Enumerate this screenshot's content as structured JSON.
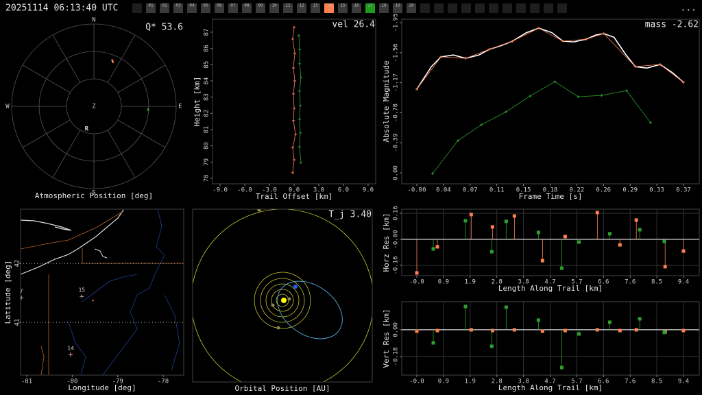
{
  "header": {
    "timestamp": "20251114 06:13:40 UTC",
    "menu": "...",
    "tabs": [
      {
        "label": "01",
        "color": "#3a3a3a"
      },
      {
        "label": "02",
        "color": "#3a3a3a"
      },
      {
        "label": "03",
        "color": "#3a3a3a"
      },
      {
        "label": "04",
        "color": "#3a3a3a"
      },
      {
        "label": "05",
        "color": "#3a3a3a"
      },
      {
        "label": "06",
        "color": "#3a3a3a"
      },
      {
        "label": "07",
        "color": "#3a3a3a"
      },
      {
        "label": "08",
        "color": "#3a3a3a"
      },
      {
        "label": "09",
        "color": "#3a3a3a"
      },
      {
        "label": "10",
        "color": "#3a3a3a"
      },
      {
        "label": "11",
        "color": "#3a3a3a"
      },
      {
        "label": "12",
        "color": "#3a3a3a"
      },
      {
        "label": "13",
        "color": "#3a3a3a"
      },
      {
        "label": "14",
        "color": "#ff7f50"
      },
      {
        "label": "15",
        "color": "#3a3a3a"
      },
      {
        "label": "16",
        "color": "#3a3a3a"
      },
      {
        "label": "17",
        "color": "#1f9a1f"
      },
      {
        "label": "18",
        "color": "#3a3a3a"
      },
      {
        "label": "19",
        "color": "#3a3a3a"
      },
      {
        "label": "20",
        "color": "#3a3a3a"
      }
    ]
  },
  "chart_data": [
    {
      "type": "polar",
      "title": "Atmospheric Position [deg]",
      "annotation": "Q* 53.6",
      "directions": [
        "N",
        "E",
        "S",
        "W"
      ],
      "center_label": "Z",
      "rlim": [
        0,
        90
      ],
      "rticks": [
        30,
        60,
        90
      ],
      "azticks": [
        0,
        30,
        60,
        90,
        120,
        150,
        180,
        210,
        240,
        270,
        300,
        330
      ],
      "series": [
        {
          "color": "#ff7f50",
          "azimuth": [
            21,
            24
          ],
          "zenith": [
            55,
            52
          ]
        },
        {
          "color": "#2ca02c",
          "azimuth": [
            92,
            95
          ],
          "zenith": [
            59,
            60
          ]
        }
      ],
      "labels": [
        {
          "text": "R",
          "azimuth": 198,
          "zenith": 26
        }
      ]
    },
    {
      "type": "line",
      "xlabel": "Trail Offset [km]",
      "ylabel": "Height [km]",
      "annotation": "vel 26.4",
      "xlim": [
        -9.92,
        9.92
      ],
      "ylim": [
        77.66,
        87.8
      ],
      "xticks": [
        {
          "value": -9,
          "label": "-9.0"
        },
        {
          "value": -6,
          "label": "-6.0"
        },
        {
          "value": -3,
          "label": "-3.0"
        },
        {
          "value": 0,
          "label": "0.0"
        },
        {
          "value": 3,
          "label": "3.0"
        },
        {
          "value": 6,
          "label": "6.0"
        },
        {
          "value": 9,
          "label": "9.0"
        }
      ],
      "yticks": [
        78,
        79,
        80,
        81,
        82,
        83,
        84,
        85,
        86,
        87
      ],
      "series": [
        {
          "color": "#ff7f50",
          "markers": true,
          "x": [
            0,
            -0.17,
            0.08,
            -0.08,
            0.08,
            -0.08,
            0,
            -0.08,
            0.17,
            -0.17,
            0,
            -0.17
          ],
          "y": [
            87.3,
            86.58,
            85.69,
            84.8,
            84.0,
            83.2,
            82.31,
            81.55,
            80.7,
            79.9,
            79.14,
            78.34
          ]
        },
        {
          "color": "#2ca02c",
          "markers": true,
          "x": [
            0.58,
            0.67,
            0.67,
            0.83,
            0.67,
            0.75,
            0.67,
            0.75,
            0.67,
            0.83
          ],
          "y": [
            86.79,
            85.94,
            85.06,
            84.21,
            83.37,
            82.48,
            81.63,
            80.79,
            79.94,
            78.97
          ]
        }
      ]
    },
    {
      "type": "line",
      "xlabel": "Frame Time [s]",
      "ylabel": "Absolute Magnitude",
      "annotation": "mass -2.62",
      "xlim": [
        -0.0206,
        0.3866
      ],
      "ylim": [
        0.142,
        -1.995
      ],
      "xticks": [
        {
          "value": 0,
          "label": "-0.00"
        },
        {
          "value": 0.0365,
          "label": "0.04"
        },
        {
          "value": 0.073,
          "label": "0.07"
        },
        {
          "value": 0.1095,
          "label": "0.11"
        },
        {
          "value": 0.146,
          "label": "0.15"
        },
        {
          "value": 0.1825,
          "label": "0.18"
        },
        {
          "value": 0.219,
          "label": "0.22"
        },
        {
          "value": 0.2555,
          "label": "0.26"
        },
        {
          "value": 0.292,
          "label": "0.29"
        },
        {
          "value": 0.3285,
          "label": "0.33"
        },
        {
          "value": 0.365,
          "label": "0.37"
        }
      ],
      "yticks": [
        {
          "value": 0,
          "label": "0.00"
        },
        -0.39,
        -0.78,
        -1.17,
        -1.56,
        -1.95
      ],
      "series": [
        {
          "color": "#ffffff",
          "markers": false,
          "x": [
            0,
            0.02,
            0.033,
            0.05,
            0.067,
            0.085,
            0.099,
            0.115,
            0.131,
            0.15,
            0.167,
            0.185,
            0.2,
            0.215,
            0.232,
            0.245,
            0.256,
            0.27,
            0.285,
            0.299,
            0.315,
            0.333,
            0.35,
            0.365
          ],
          "y": [
            -1.086,
            -1.38,
            -1.505,
            -1.53,
            -1.487,
            -1.53,
            -1.603,
            -1.65,
            -1.71,
            -1.82,
            -1.879,
            -1.82,
            -1.71,
            -1.7,
            -1.736,
            -1.79,
            -1.808,
            -1.76,
            -1.55,
            -1.38,
            -1.36,
            -1.407,
            -1.3,
            -1.175
          ]
        },
        {
          "color": "#ff7f50",
          "markers": true,
          "x": [
            0,
            0.033,
            0.067,
            0.099,
            0.131,
            0.167,
            0.2,
            0.232,
            0.256,
            0.299,
            0.333,
            0.365
          ],
          "y": [
            -1.086,
            -1.505,
            -1.487,
            -1.603,
            -1.71,
            -1.879,
            -1.71,
            -1.736,
            -1.808,
            -1.38,
            -1.407,
            -1.175
          ]
        },
        {
          "color": "#2ca02c",
          "markers": true,
          "x": [
            0.0216,
            0.0563,
            0.0882,
            0.122,
            0.155,
            0.189,
            0.221,
            0.253,
            0.287,
            0.32
          ],
          "y": [
            0.009,
            -0.418,
            -0.623,
            -0.792,
            -0.997,
            -1.184,
            -0.988,
            -1.006,
            -1.068,
            -0.65
          ]
        }
      ]
    },
    {
      "type": "map",
      "xlabel": "Longitude [deg]",
      "ylabel": "Latitude [deg]",
      "xlim": [
        -81.136,
        -77.548
      ],
      "ylim": [
        40.105,
        42.92
      ],
      "xticks": [
        -81,
        -80,
        -79,
        -78
      ],
      "yticks": [
        41,
        42
      ],
      "stations": [
        {
          "label": "14",
          "lon": -80.035,
          "lat": 40.453,
          "color": "#ff9999"
        },
        {
          "label": "15",
          "lon": -79.79,
          "lat": 41.44,
          "color": "#aaaaaa"
        },
        {
          "label": "7",
          "lon": -81.12,
          "lat": 41.42,
          "color": "#aaaaaa"
        }
      ],
      "series": [
        {
          "color": "#ff7f50",
          "markers": false,
          "x": [
            -79.56,
            -79.53
          ],
          "y": [
            41.36,
            41.38
          ]
        }
      ]
    },
    {
      "type": "orbit",
      "title": "Orbital Position [AU]",
      "annotation": "T_j 3.40"
    },
    {
      "type": "stem",
      "xlabel": "Length Along Trail [km]",
      "ylabel": "Horz Res [km]",
      "grid": true,
      "xlim": [
        -0.534,
        9.998
      ],
      "ylim": [
        -0.223,
        0.185
      ],
      "xticks": [
        {
          "value": 0,
          "label": "-0.0"
        },
        {
          "value": 0.944,
          "label": "0.9"
        },
        {
          "value": 1.888,
          "label": "1.9"
        },
        {
          "value": 2.832,
          "label": "2.8"
        },
        {
          "value": 3.776,
          "label": "3.8"
        },
        {
          "value": 4.72,
          "label": "4.7"
        },
        {
          "value": 5.664,
          "label": "5.7"
        },
        {
          "value": 6.608,
          "label": "6.6"
        },
        {
          "value": 7.552,
          "label": "7.6"
        },
        {
          "value": 8.496,
          "label": "8.5"
        },
        {
          "value": 9.44,
          "label": "9.4"
        }
      ],
      "yticks": [
        -0.16,
        {
          "value": 0,
          "label": "-0.00"
        },
        0.16
      ],
      "series": [
        {
          "color": "#ff7f50",
          "x": [
            0,
            0.728,
            1.925,
            2.678,
            3.454,
            4.45,
            5.25,
            6.39,
            7.19,
            7.77,
            8.79,
            9.44
          ],
          "y": [
            -0.206,
            -0.046,
            0.152,
            0.076,
            0.143,
            -0.131,
            0.017,
            0.164,
            -0.034,
            0.118,
            -0.168,
            -0.072
          ]
        },
        {
          "color": "#2ca02c",
          "x": [
            0.582,
            1.723,
            2.654,
            3.163,
            4.304,
            5.13,
            5.74,
            6.83,
            7.89,
            8.76
          ],
          "y": [
            -0.059,
            0.114,
            -0.076,
            0.11,
            0.042,
            -0.177,
            -0.017,
            0.034,
            0.059,
            -0.013
          ]
        }
      ]
    },
    {
      "type": "stem",
      "xlabel": "Length Along Trail [km]",
      "ylabel": "Vert Res [km]",
      "grid": true,
      "xlim": [
        -0.534,
        9.998
      ],
      "ylim": [
        -0.305,
        0.189
      ],
      "xticks": [
        {
          "value": 0,
          "label": "-0.0"
        },
        {
          "value": 0.944,
          "label": "0.9"
        },
        {
          "value": 1.888,
          "label": "1.9"
        },
        {
          "value": 2.832,
          "label": "2.8"
        },
        {
          "value": 3.776,
          "label": "3.8"
        },
        {
          "value": 4.72,
          "label": "4.7"
        },
        {
          "value": 5.664,
          "label": "5.7"
        },
        {
          "value": 6.608,
          "label": "6.6"
        },
        {
          "value": 7.552,
          "label": "7.6"
        },
        {
          "value": 8.496,
          "label": "8.5"
        },
        {
          "value": 9.44,
          "label": "9.4"
        }
      ],
      "yticks": [
        -0.18,
        {
          "value": 0,
          "label": "0.00"
        }
      ],
      "series": [
        {
          "color": "#ff7f50",
          "x": [
            0,
            0.728,
            1.925,
            2.678,
            3.454,
            4.45,
            5.25,
            6.39,
            7.19,
            7.77,
            8.79,
            9.44
          ],
          "y": [
            -0.009,
            -0.005,
            0,
            -0.005,
            0,
            -0.009,
            -0.005,
            0,
            -0.005,
            0,
            -0.014,
            -0.005
          ]
        },
        {
          "color": "#2ca02c",
          "x": [
            0.582,
            1.723,
            2.654,
            3.163,
            4.304,
            5.13,
            5.74,
            6.83,
            7.89,
            8.76
          ],
          "y": [
            -0.088,
            0.157,
            -0.111,
            0.152,
            0.065,
            -0.254,
            -0.028,
            0.051,
            0.074,
            -0.018
          ]
        }
      ]
    }
  ]
}
